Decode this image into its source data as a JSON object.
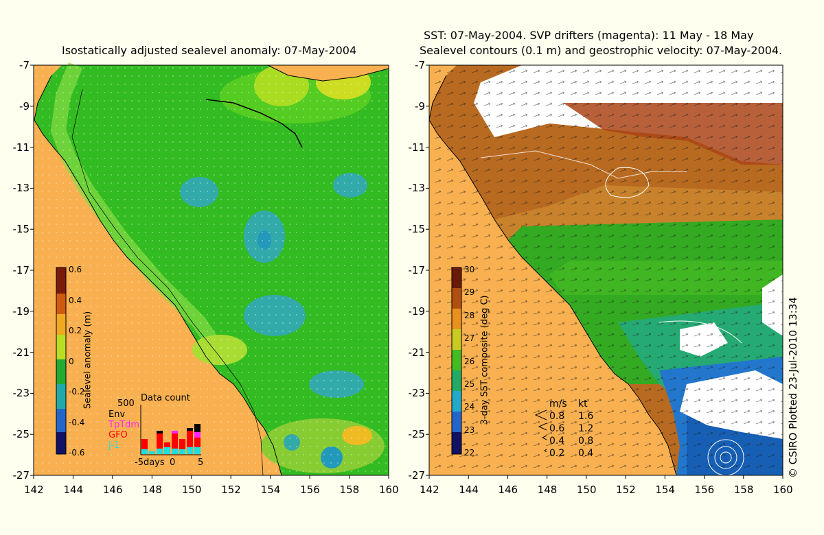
{
  "left_panel": {
    "title": "Isostatically adjusted sealevel anomaly: 07-May-2004",
    "colorbar": {
      "label": "Sealevel anomaly (m)",
      "ticks": [
        "0.6",
        "0.4",
        "0.2",
        "0",
        "-0.2",
        "-0.4",
        "-0.6"
      ]
    },
    "data_count": {
      "title": "Data count",
      "scale_label": "500",
      "legend": [
        {
          "name": "Env",
          "color": "#000000"
        },
        {
          "name": "TpTdm",
          "color": "#ff22ff"
        },
        {
          "name": "GFO",
          "color": "#ff0000"
        },
        {
          "name": "J-1",
          "color": "#22dddd"
        }
      ],
      "xlabels": [
        "-5days",
        "0",
        "5"
      ]
    }
  },
  "right_panel": {
    "title_line1": "SST: 07-May-2004. SVP drifters (magenta): 11 May - 18 May",
    "title_line2": "Sealevel contours (0.1 m) and geostrophic velocity: 07-May-2004.",
    "colorbar": {
      "label": "3-day SST composite (deg C)",
      "ticks": [
        "30",
        "29",
        "28",
        "27",
        "26",
        "25",
        "24",
        "23",
        "22"
      ]
    },
    "velocity_legend": {
      "header_ms": "m/s",
      "header_kt": "kt",
      "rows": [
        {
          "ms": "0.8",
          "kt": "1.6"
        },
        {
          "ms": "0.6",
          "kt": "1.2"
        },
        {
          "ms": "0.4",
          "kt": "0.8"
        },
        {
          "ms": "0.2",
          "kt": "0.4"
        }
      ]
    }
  },
  "axes": {
    "x_ticks": [
      "142",
      "144",
      "146",
      "148",
      "150",
      "152",
      "154",
      "156",
      "158",
      "160"
    ],
    "y_ticks": [
      "-7",
      "-9",
      "-11",
      "-13",
      "-15",
      "-17",
      "-19",
      "-21",
      "-23",
      "-25",
      "-27"
    ]
  },
  "credit": "© CSIRO Plotted 23-Jul-2010 13:34",
  "colors": {
    "land": "#f8b050",
    "background": "#fffff0",
    "ocean_green": "#33bb22",
    "cloud": "#ffffff"
  }
}
